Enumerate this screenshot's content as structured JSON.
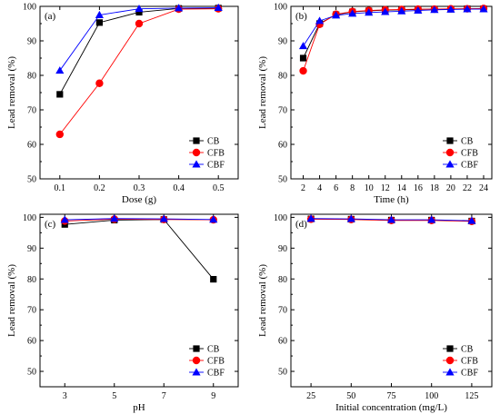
{
  "colors": {
    "CB": "#000000",
    "CFB": "#ff0000",
    "CBF": "#0000ff"
  },
  "chart_data": [
    {
      "panel": "(a)",
      "type": "line",
      "xlabel": "Dose (g)",
      "ylabel": "Lead removal (%)",
      "xlim": [
        0.05,
        0.55
      ],
      "ylim": [
        50,
        100
      ],
      "xticks": [
        0.1,
        0.2,
        0.3,
        0.4,
        0.5
      ],
      "xtick_labels": [
        "0.1",
        "0.2",
        "0.3",
        "0.4",
        "0.5"
      ],
      "yticks": [
        50,
        60,
        70,
        80,
        90,
        100
      ],
      "legend_position": "bottom-right",
      "x": [
        0.1,
        0.2,
        0.3,
        0.4,
        0.5
      ],
      "series": [
        {
          "name": "CB",
          "marker": "square",
          "values": [
            74.5,
            95.3,
            98.3,
            99.4,
            99.5
          ]
        },
        {
          "name": "CFB",
          "marker": "circle",
          "values": [
            62.9,
            77.7,
            95.0,
            99.2,
            99.3
          ]
        },
        {
          "name": "CBF",
          "marker": "triangle",
          "values": [
            81.4,
            97.5,
            99.3,
            99.5,
            99.6
          ]
        }
      ]
    },
    {
      "panel": "(b)",
      "type": "line",
      "xlabel": "Time (h)",
      "ylabel": "Lead removal (%)",
      "xlim": [
        0.5,
        25
      ],
      "ylim": [
        50,
        100
      ],
      "xticks": [
        2,
        4,
        6,
        8,
        10,
        12,
        14,
        16,
        18,
        20,
        22,
        24
      ],
      "xtick_labels": [
        "2",
        "4",
        "6",
        "8",
        "10",
        "12",
        "14",
        "16",
        "18",
        "20",
        "22",
        "24"
      ],
      "yticks": [
        50,
        60,
        70,
        80,
        90,
        100
      ],
      "legend_position": "bottom-right",
      "x": [
        2,
        4,
        6,
        8,
        10,
        12,
        14,
        16,
        18,
        20,
        22,
        24
      ],
      "series": [
        {
          "name": "CB",
          "marker": "square",
          "values": [
            85.0,
            95.0,
            97.6,
            98.4,
            98.7,
            98.9,
            99.0,
            99.1,
            99.2,
            99.2,
            99.3,
            99.3
          ]
        },
        {
          "name": "CFB",
          "marker": "circle",
          "values": [
            81.3,
            94.8,
            97.7,
            98.5,
            98.8,
            99.0,
            99.1,
            99.2,
            99.2,
            99.3,
            99.3,
            99.4
          ]
        },
        {
          "name": "CBF",
          "marker": "triangle",
          "values": [
            88.5,
            95.8,
            97.4,
            97.9,
            98.2,
            98.4,
            98.6,
            98.8,
            99.0,
            99.1,
            99.2,
            99.2
          ]
        }
      ]
    },
    {
      "panel": "(c)",
      "type": "line",
      "xlabel": "pH",
      "ylabel": "Lead removal (%)",
      "xlim": [
        2,
        10
      ],
      "ylim": [
        45,
        101
      ],
      "xticks": [
        3,
        5,
        7,
        9
      ],
      "xtick_labels": [
        "3",
        "5",
        "7",
        "9"
      ],
      "yticks": [
        50,
        60,
        70,
        80,
        90,
        100
      ],
      "legend_position": "bottom-right",
      "x": [
        3,
        5,
        7,
        9
      ],
      "series": [
        {
          "name": "CB",
          "marker": "square",
          "values": [
            97.7,
            99.1,
            99.3,
            79.9
          ]
        },
        {
          "name": "CFB",
          "marker": "circle",
          "values": [
            98.8,
            99.4,
            99.3,
            99.2
          ]
        },
        {
          "name": "CBF",
          "marker": "triangle",
          "values": [
            99.2,
            99.6,
            99.5,
            99.3
          ]
        }
      ]
    },
    {
      "panel": "(d)",
      "type": "line",
      "xlabel": "Initial concentration (mg/L)",
      "ylabel": "Lead removal (%)",
      "xlim": [
        12.5,
        137.5
      ],
      "ylim": [
        45,
        101
      ],
      "xticks": [
        25,
        50,
        75,
        100,
        125
      ],
      "xtick_labels": [
        "25",
        "50",
        "75",
        "100",
        "125"
      ],
      "yticks": [
        50,
        60,
        70,
        80,
        90,
        100
      ],
      "legend_position": "bottom-right",
      "x": [
        25,
        50,
        75,
        100,
        125
      ],
      "series": [
        {
          "name": "CB",
          "marker": "square",
          "values": [
            99.5,
            99.4,
            99.1,
            99.1,
            98.8
          ]
        },
        {
          "name": "CFB",
          "marker": "circle",
          "values": [
            99.4,
            99.3,
            99.0,
            99.0,
            98.7
          ]
        },
        {
          "name": "CBF",
          "marker": "triangle",
          "values": [
            99.6,
            99.5,
            99.2,
            99.2,
            98.9
          ]
        }
      ]
    }
  ]
}
